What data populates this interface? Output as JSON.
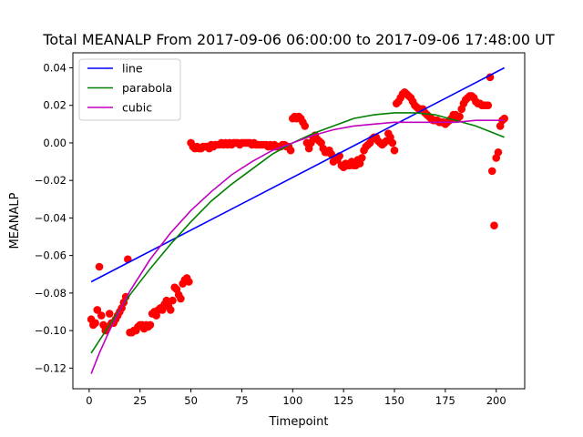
{
  "chart_data": {
    "type": "scatter",
    "title": "Total MEANALP From 2017-09-06 06:00:00 to 2017-09-06 17:48:00 UT",
    "xlabel": "Timepoint",
    "ylabel": "MEANALP",
    "xlim": [
      -8,
      214
    ],
    "ylim": [
      -0.131,
      0.048
    ],
    "xticks": [
      0,
      25,
      50,
      75,
      100,
      125,
      150,
      175,
      200
    ],
    "xtick_labels": [
      "0",
      "25",
      "50",
      "75",
      "100",
      "125",
      "150",
      "175",
      "200"
    ],
    "yticks": [
      -0.12,
      -0.1,
      -0.08,
      -0.06,
      -0.04,
      -0.02,
      0.0,
      0.02,
      0.04
    ],
    "ytick_labels": [
      "−0.12",
      "−0.10",
      "−0.08",
      "−0.06",
      "−0.04",
      "−0.02",
      "0.00",
      "0.02",
      "0.04"
    ],
    "grid": false,
    "legend_position": "top-left",
    "scatter": {
      "color": "#ff0000",
      "points": [
        [
          1,
          -0.094
        ],
        [
          2,
          -0.097
        ],
        [
          3,
          -0.096
        ],
        [
          4,
          -0.089
        ],
        [
          5,
          -0.066
        ],
        [
          6,
          -0.092
        ],
        [
          7,
          -0.097
        ],
        [
          8,
          -0.1
        ],
        [
          9,
          -0.098
        ],
        [
          10,
          -0.091
        ],
        [
          11,
          -0.096
        ],
        [
          12,
          -0.096
        ],
        [
          13,
          -0.094
        ],
        [
          14,
          -0.092
        ],
        [
          15,
          -0.09
        ],
        [
          16,
          -0.088
        ],
        [
          17,
          -0.085
        ],
        [
          18,
          -0.082
        ],
        [
          19,
          -0.062
        ],
        [
          20,
          -0.101
        ],
        [
          21,
          -0.101
        ],
        [
          22,
          -0.1
        ],
        [
          23,
          -0.1
        ],
        [
          24,
          -0.098
        ],
        [
          25,
          -0.097
        ],
        [
          26,
          -0.097
        ],
        [
          27,
          -0.099
        ],
        [
          28,
          -0.097
        ],
        [
          29,
          -0.098
        ],
        [
          30,
          -0.097
        ],
        [
          31,
          -0.091
        ],
        [
          32,
          -0.09
        ],
        [
          33,
          -0.092
        ],
        [
          34,
          -0.089
        ],
        [
          35,
          -0.088
        ],
        [
          36,
          -0.089
        ],
        [
          37,
          -0.086
        ],
        [
          38,
          -0.084
        ],
        [
          39,
          -0.087
        ],
        [
          40,
          -0.089
        ],
        [
          41,
          -0.084
        ],
        [
          42,
          -0.077
        ],
        [
          43,
          -0.078
        ],
        [
          44,
          -0.081
        ],
        [
          45,
          -0.083
        ],
        [
          46,
          -0.075
        ],
        [
          47,
          -0.073
        ],
        [
          48,
          -0.072
        ],
        [
          49,
          -0.074
        ],
        [
          50,
          0.0
        ],
        [
          51,
          -0.002
        ],
        [
          52,
          -0.003
        ],
        [
          53,
          -0.002
        ],
        [
          54,
          -0.003
        ],
        [
          55,
          -0.003
        ],
        [
          56,
          -0.002
        ],
        [
          57,
          -0.002
        ],
        [
          58,
          -0.002
        ],
        [
          59,
          -0.003
        ],
        [
          60,
          -0.001
        ],
        [
          61,
          -0.002
        ],
        [
          62,
          -0.001
        ],
        [
          63,
          -0.001
        ],
        [
          64,
          -0.001
        ],
        [
          65,
          0.0
        ],
        [
          66,
          -0.001
        ],
        [
          67,
          0.0
        ],
        [
          68,
          -0.001
        ],
        [
          69,
          0.0
        ],
        [
          70,
          -0.001
        ],
        [
          71,
          0.0
        ],
        [
          72,
          0.0
        ],
        [
          73,
          0.0
        ],
        [
          74,
          -0.001
        ],
        [
          75,
          0.0
        ],
        [
          76,
          0.0
        ],
        [
          77,
          0.0
        ],
        [
          78,
          0.0
        ],
        [
          79,
          0.0
        ],
        [
          80,
          -0.001
        ],
        [
          81,
          0.0
        ],
        [
          82,
          -0.001
        ],
        [
          83,
          -0.001
        ],
        [
          84,
          -0.001
        ],
        [
          85,
          -0.001
        ],
        [
          86,
          -0.001
        ],
        [
          87,
          -0.001
        ],
        [
          88,
          -0.002
        ],
        [
          89,
          -0.001
        ],
        [
          90,
          -0.002
        ],
        [
          91,
          -0.001
        ],
        [
          92,
          -0.002
        ],
        [
          93,
          -0.002
        ],
        [
          94,
          -0.002
        ],
        [
          95,
          -0.001
        ],
        [
          96,
          -0.001
        ],
        [
          97,
          -0.002
        ],
        [
          98,
          -0.002
        ],
        [
          99,
          -0.004
        ],
        [
          100,
          0.013
        ],
        [
          101,
          0.014
        ],
        [
          102,
          0.013
        ],
        [
          103,
          0.014
        ],
        [
          104,
          0.013
        ],
        [
          105,
          0.011
        ],
        [
          106,
          0.009
        ],
        [
          107,
          0.0
        ],
        [
          108,
          -0.003
        ],
        [
          109,
          0.0
        ],
        [
          110,
          0.003
        ],
        [
          111,
          0.004
        ],
        [
          112,
          0.002
        ],
        [
          113,
          0.001
        ],
        [
          114,
          0.0
        ],
        [
          115,
          -0.003
        ],
        [
          116,
          -0.005
        ],
        [
          117,
          -0.005
        ],
        [
          118,
          -0.004
        ],
        [
          119,
          -0.006
        ],
        [
          120,
          -0.01
        ],
        [
          121,
          -0.008
        ],
        [
          122,
          -0.009
        ],
        [
          123,
          -0.007
        ],
        [
          124,
          -0.012
        ],
        [
          125,
          -0.013
        ],
        [
          126,
          -0.011
        ],
        [
          127,
          -0.012
        ],
        [
          128,
          -0.012
        ],
        [
          129,
          -0.01
        ],
        [
          130,
          -0.012
        ],
        [
          131,
          -0.012
        ],
        [
          132,
          -0.009
        ],
        [
          133,
          -0.011
        ],
        [
          134,
          -0.008
        ],
        [
          135,
          -0.004
        ],
        [
          136,
          -0.002
        ],
        [
          137,
          -0.001
        ],
        [
          138,
          0.0
        ],
        [
          139,
          0.002
        ],
        [
          140,
          0.003
        ],
        [
          141,
          0.003
        ],
        [
          142,
          0.001
        ],
        [
          143,
          0.0
        ],
        [
          144,
          -0.001
        ],
        [
          145,
          0.0
        ],
        [
          146,
          0.001
        ],
        [
          147,
          0.005
        ],
        [
          148,
          0.003
        ],
        [
          149,
          0.0
        ],
        [
          150,
          -0.004
        ],
        [
          151,
          0.021
        ],
        [
          152,
          0.022
        ],
        [
          153,
          0.024
        ],
        [
          154,
          0.026
        ],
        [
          155,
          0.027
        ],
        [
          156,
          0.026
        ],
        [
          157,
          0.025
        ],
        [
          158,
          0.024
        ],
        [
          159,
          0.022
        ],
        [
          160,
          0.02
        ],
        [
          161,
          0.019
        ],
        [
          162,
          0.018
        ],
        [
          163,
          0.018
        ],
        [
          164,
          0.018
        ],
        [
          165,
          0.016
        ],
        [
          166,
          0.015
        ],
        [
          167,
          0.014
        ],
        [
          168,
          0.013
        ],
        [
          169,
          0.012
        ],
        [
          170,
          0.012
        ],
        [
          171,
          0.012
        ],
        [
          172,
          0.011
        ],
        [
          173,
          0.011
        ],
        [
          174,
          0.011
        ],
        [
          175,
          0.01
        ],
        [
          176,
          0.011
        ],
        [
          177,
          0.012
        ],
        [
          178,
          0.013
        ],
        [
          179,
          0.015
        ],
        [
          180,
          0.015
        ],
        [
          181,
          0.013
        ],
        [
          182,
          0.014
        ],
        [
          183,
          0.018
        ],
        [
          184,
          0.021
        ],
        [
          185,
          0.023
        ],
        [
          186,
          0.024
        ],
        [
          187,
          0.025
        ],
        [
          188,
          0.025
        ],
        [
          189,
          0.024
        ],
        [
          190,
          0.022
        ],
        [
          191,
          0.021
        ],
        [
          192,
          0.021
        ],
        [
          193,
          0.02
        ],
        [
          194,
          0.02
        ],
        [
          195,
          0.02
        ],
        [
          196,
          0.02
        ],
        [
          197,
          0.035
        ],
        [
          198,
          -0.015
        ],
        [
          199,
          -0.044
        ],
        [
          200,
          -0.008
        ],
        [
          201,
          -0.005
        ],
        [
          202,
          0.009
        ],
        [
          203,
          0.012
        ],
        [
          204,
          0.013
        ]
      ]
    },
    "series": [
      {
        "name": "line",
        "type": "line",
        "color": "#0000ff",
        "x": [
          1,
          204
        ],
        "y": [
          -0.074,
          0.04
        ]
      },
      {
        "name": "parabola",
        "type": "line",
        "color": "#008000",
        "x": [
          1,
          10,
          20,
          30,
          40,
          50,
          60,
          70,
          80,
          90,
          100,
          110,
          120,
          130,
          140,
          150,
          160,
          170,
          180,
          190,
          204
        ],
        "y": [
          -0.112,
          -0.097,
          -0.081,
          -0.067,
          -0.054,
          -0.042,
          -0.031,
          -0.022,
          -0.014,
          -0.006,
          0.0,
          0.005,
          0.009,
          0.013,
          0.015,
          0.016,
          0.016,
          0.015,
          0.012,
          0.009,
          0.003
        ]
      },
      {
        "name": "cubic",
        "type": "line",
        "color": "#bf00bf",
        "x": [
          1,
          5,
          10,
          20,
          30,
          40,
          50,
          60,
          70,
          80,
          90,
          100,
          110,
          120,
          130,
          140,
          150,
          160,
          170,
          180,
          190,
          204
        ],
        "y": [
          -0.123,
          -0.112,
          -0.1,
          -0.079,
          -0.062,
          -0.048,
          -0.036,
          -0.026,
          -0.017,
          -0.01,
          -0.004,
          0.0,
          0.004,
          0.007,
          0.009,
          0.01,
          0.011,
          0.011,
          0.011,
          0.011,
          0.012,
          0.012
        ]
      }
    ]
  }
}
